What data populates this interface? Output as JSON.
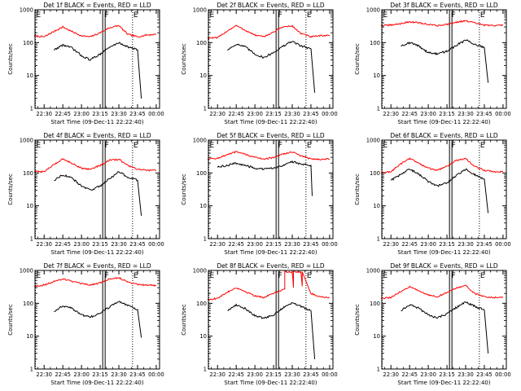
{
  "figure": {
    "background": "#ffffff",
    "colors": {
      "events": "#000000",
      "lld": "#ff0000",
      "axes": "#000000"
    },
    "ylabel": "Counts/sec",
    "xlabel": "Start Time (09-Dec-11 22:22:40)"
  },
  "chart_data": [
    {
      "type": "line",
      "title": "Det 1f BLACK = Events, RED = LLD",
      "ylabel": "Counts/sec",
      "xlabel": "Start Time (09-Dec-11 22:22:40)",
      "y_scale": "log",
      "ylim": [
        1,
        1000
      ],
      "yticks": [
        "1",
        "10",
        "100",
        "1000"
      ],
      "xlim": [
        "22:22:40",
        "00:02:40"
      ],
      "xticks": [
        "22:30",
        "22:45",
        "23:00",
        "23:15",
        "23:30",
        "23:45",
        "00:00"
      ],
      "flags": [
        {
          "label": "E",
          "time": "22:23"
        },
        {
          "label": "F",
          "time": "23:18"
        },
        {
          "label": "E",
          "time": "23:41"
        }
      ],
      "series": [
        {
          "name": "LLD",
          "color": "#ff0000",
          "x": [
            "22:22",
            "22:30",
            "22:38",
            "22:45",
            "22:52",
            "23:00",
            "23:07",
            "23:15",
            "23:22",
            "23:30",
            "23:37",
            "23:45",
            "23:52",
            "00:00"
          ],
          "y": [
            160,
            150,
            220,
            300,
            220,
            160,
            150,
            200,
            280,
            330,
            180,
            150,
            170,
            180
          ]
        },
        {
          "name": "Events",
          "color": "#000000",
          "x": [
            "22:38",
            "22:45",
            "22:52",
            "23:00",
            "23:07",
            "23:15",
            "23:22",
            "23:30",
            "23:37",
            "23:45",
            "23:48"
          ],
          "y": [
            60,
            85,
            70,
            40,
            30,
            45,
            70,
            100,
            75,
            60,
            2
          ]
        }
      ]
    },
    {
      "type": "line",
      "title": "Det 2f BLACK = Events, RED = LLD",
      "ylabel": "Counts/sec",
      "xlabel": "Start Time (09-Dec-11 22:22:40)",
      "y_scale": "log",
      "ylim": [
        1,
        1000
      ],
      "yticks": [
        "1",
        "10",
        "100",
        "1000"
      ],
      "xlim": [
        "22:22:40",
        "00:02:40"
      ],
      "xticks": [
        "22:30",
        "22:45",
        "23:00",
        "23:15",
        "23:30",
        "23:45",
        "00:00"
      ],
      "flags": [
        {
          "label": "E",
          "time": "22:23"
        },
        {
          "label": "F",
          "time": "23:18"
        },
        {
          "label": "E",
          "time": "23:41"
        }
      ],
      "series": [
        {
          "name": "LLD",
          "color": "#ff0000",
          "x": [
            "22:22",
            "22:30",
            "22:38",
            "22:45",
            "22:52",
            "23:00",
            "23:07",
            "23:15",
            "23:22",
            "23:30",
            "23:37",
            "23:45",
            "23:52",
            "00:00"
          ],
          "y": [
            140,
            140,
            230,
            330,
            240,
            170,
            150,
            210,
            300,
            320,
            190,
            150,
            160,
            170
          ]
        },
        {
          "name": "Events",
          "color": "#000000",
          "x": [
            "22:38",
            "22:45",
            "22:52",
            "23:00",
            "23:07",
            "23:15",
            "23:22",
            "23:30",
            "23:37",
            "23:45",
            "23:48"
          ],
          "y": [
            60,
            90,
            75,
            45,
            35,
            50,
            75,
            110,
            80,
            65,
            3
          ]
        }
      ]
    },
    {
      "type": "line",
      "title": "Det 3f BLACK = Events, RED = LLD",
      "ylabel": "Counts/sec",
      "xlabel": "Start Time (09-Dec-11 22:22:40)",
      "y_scale": "log",
      "ylim": [
        1,
        1000
      ],
      "yticks": [
        "1",
        "10",
        "100",
        "1000"
      ],
      "xlim": [
        "22:22:40",
        "00:02:40"
      ],
      "xticks": [
        "22:30",
        "22:45",
        "23:00",
        "23:15",
        "23:30",
        "23:45",
        "00:00"
      ],
      "flags": [
        {
          "label": "E",
          "time": "22:23"
        },
        {
          "label": "F",
          "time": "23:18"
        },
        {
          "label": "E",
          "time": "23:41"
        }
      ],
      "series": [
        {
          "name": "LLD",
          "color": "#ff0000",
          "x": [
            "22:22",
            "22:30",
            "22:38",
            "22:45",
            "22:52",
            "23:00",
            "23:07",
            "23:15",
            "23:22",
            "23:30",
            "23:37",
            "23:45",
            "23:52",
            "00:00"
          ],
          "y": [
            330,
            340,
            380,
            430,
            400,
            360,
            330,
            360,
            420,
            460,
            400,
            340,
            330,
            340
          ]
        },
        {
          "name": "Events",
          "color": "#000000",
          "x": [
            "22:38",
            "22:45",
            "22:52",
            "23:00",
            "23:07",
            "23:15",
            "23:22",
            "23:30",
            "23:37",
            "23:45",
            "23:48"
          ],
          "y": [
            80,
            100,
            80,
            50,
            45,
            55,
            80,
            120,
            90,
            70,
            6
          ]
        }
      ]
    },
    {
      "type": "line",
      "title": "Det 4f BLACK = Events, RED = LLD",
      "ylabel": "Counts/sec",
      "xlabel": "Start Time (09-Dec-11 22:22:40)",
      "y_scale": "log",
      "ylim": [
        1,
        1000
      ],
      "yticks": [
        "1",
        "10",
        "100",
        "1000"
      ],
      "xlim": [
        "22:22:40",
        "00:02:40"
      ],
      "xticks": [
        "22:30",
        "22:45",
        "23:00",
        "23:15",
        "23:30",
        "23:45",
        "00:00"
      ],
      "flags": [
        {
          "label": "E",
          "time": "22:23"
        },
        {
          "label": "F",
          "time": "23:18"
        },
        {
          "label": "E",
          "time": "23:41"
        }
      ],
      "series": [
        {
          "name": "LLD",
          "color": "#ff0000",
          "x": [
            "22:22",
            "22:30",
            "22:38",
            "22:45",
            "22:52",
            "23:00",
            "23:07",
            "23:15",
            "23:22",
            "23:30",
            "23:37",
            "23:45",
            "23:52",
            "00:00"
          ],
          "y": [
            110,
            110,
            180,
            270,
            200,
            140,
            130,
            170,
            240,
            260,
            170,
            130,
            120,
            120
          ]
        },
        {
          "name": "Events",
          "color": "#000000",
          "x": [
            "22:38",
            "22:45",
            "22:52",
            "23:00",
            "23:07",
            "23:15",
            "23:22",
            "23:30",
            "23:37",
            "23:45",
            "23:48"
          ],
          "y": [
            60,
            90,
            70,
            40,
            30,
            40,
            65,
            110,
            75,
            60,
            5
          ]
        }
      ]
    },
    {
      "type": "line",
      "title": "Det 5f BLACK = Events, RED = LLD",
      "ylabel": "Counts/sec",
      "xlabel": "Start Time (09-Dec-11 22:22:40)",
      "y_scale": "log",
      "ylim": [
        1,
        1000
      ],
      "yticks": [
        "1",
        "10",
        "100",
        "1000"
      ],
      "xlim": [
        "22:22:40",
        "00:02:40"
      ],
      "xticks": [
        "22:30",
        "22:45",
        "23:00",
        "23:15",
        "23:30",
        "23:45",
        "00:00"
      ],
      "flags": [
        {
          "label": "E",
          "time": "22:23"
        },
        {
          "label": "F",
          "time": "23:18"
        },
        {
          "label": "E",
          "time": "23:41"
        }
      ],
      "series": [
        {
          "name": "LLD",
          "color": "#ff0000",
          "x": [
            "22:22",
            "22:30",
            "22:38",
            "22:45",
            "22:52",
            "23:00",
            "23:07",
            "23:15",
            "23:22",
            "23:30",
            "23:37",
            "23:45",
            "23:52",
            "00:00"
          ],
          "y": [
            270,
            280,
            360,
            440,
            370,
            300,
            270,
            290,
            370,
            440,
            330,
            270,
            260,
            270
          ]
        },
        {
          "name": "Events",
          "color": "#000000",
          "x": [
            "22:30",
            "22:38",
            "22:45",
            "22:52",
            "23:00",
            "23:07",
            "23:15",
            "23:22",
            "23:30",
            "23:37",
            "23:45",
            "23:46"
          ],
          "y": [
            150,
            170,
            200,
            170,
            140,
            130,
            140,
            170,
            220,
            190,
            170,
            20
          ]
        }
      ]
    },
    {
      "type": "line",
      "title": "Det 6f BLACK = Events, RED = LLD",
      "ylabel": "Counts/sec",
      "xlabel": "Start Time (09-Dec-11 22:22:40)",
      "y_scale": "log",
      "ylim": [
        1,
        1000
      ],
      "yticks": [
        "1",
        "10",
        "100",
        "1000"
      ],
      "xlim": [
        "22:22:40",
        "00:02:40"
      ],
      "xticks": [
        "22:30",
        "22:45",
        "23:00",
        "23:15",
        "23:30",
        "23:45",
        "00:00"
      ],
      "flags": [
        {
          "label": "E",
          "time": "22:23"
        },
        {
          "label": "F",
          "time": "23:18"
        },
        {
          "label": "E",
          "time": "23:41"
        }
      ],
      "series": [
        {
          "name": "LLD",
          "color": "#ff0000",
          "x": [
            "22:22",
            "22:30",
            "22:38",
            "22:45",
            "22:52",
            "23:00",
            "23:07",
            "23:15",
            "23:22",
            "23:30",
            "23:37",
            "23:45",
            "23:52",
            "00:00"
          ],
          "y": [
            100,
            110,
            190,
            280,
            200,
            140,
            120,
            160,
            240,
            270,
            160,
            120,
            110,
            110
          ]
        },
        {
          "name": "Events",
          "color": "#000000",
          "x": [
            "22:30",
            "22:38",
            "22:45",
            "22:52",
            "23:00",
            "23:07",
            "23:15",
            "23:22",
            "23:30",
            "23:37",
            "23:45",
            "23:48"
          ],
          "y": [
            60,
            90,
            130,
            95,
            55,
            40,
            50,
            80,
            130,
            90,
            65,
            6
          ]
        }
      ]
    },
    {
      "type": "line",
      "title": "Det 7f BLACK = Events, RED = LLD",
      "ylabel": "Counts/sec",
      "xlabel": "Start Time (09-Dec-11 22:22:40)",
      "y_scale": "log",
      "ylim": [
        1,
        1000
      ],
      "yticks": [
        "1",
        "10",
        "100",
        "1000"
      ],
      "xlim": [
        "22:22:40",
        "00:02:40"
      ],
      "xticks": [
        "22:30",
        "22:45",
        "23:00",
        "23:15",
        "23:30",
        "23:45",
        "00:00"
      ],
      "flags": [
        {
          "label": "E",
          "time": "22:23"
        },
        {
          "label": "F",
          "time": "23:18"
        },
        {
          "label": "E",
          "time": "23:41"
        }
      ],
      "series": [
        {
          "name": "LLD",
          "color": "#ff0000",
          "x": [
            "22:22",
            "22:30",
            "22:38",
            "22:45",
            "22:52",
            "23:00",
            "23:07",
            "23:15",
            "23:22",
            "23:30",
            "23:37",
            "23:45",
            "23:52",
            "00:00"
          ],
          "y": [
            330,
            360,
            460,
            560,
            470,
            390,
            360,
            420,
            540,
            600,
            450,
            380,
            360,
            350
          ]
        },
        {
          "name": "Events",
          "color": "#000000",
          "x": [
            "22:38",
            "22:45",
            "22:52",
            "23:00",
            "23:07",
            "23:15",
            "23:22",
            "23:30",
            "23:37",
            "23:45",
            "23:48"
          ],
          "y": [
            55,
            85,
            70,
            45,
            38,
            50,
            75,
            115,
            85,
            65,
            9
          ]
        }
      ]
    },
    {
      "type": "line",
      "title": "Det 8f BLACK = Events, RED = LLD",
      "ylabel": "Counts/sec",
      "xlabel": "Start Time (09-Dec-11 22:22:40)",
      "y_scale": "log",
      "ylim": [
        1,
        1000
      ],
      "yticks": [
        "1",
        "10",
        "100",
        "1000"
      ],
      "xlim": [
        "22:22:40",
        "00:02:40"
      ],
      "xticks": [
        "22:30",
        "22:45",
        "23:00",
        "23:15",
        "23:30",
        "23:45",
        "00:00"
      ],
      "flags": [
        {
          "label": "E",
          "time": "22:23"
        },
        {
          "label": "F",
          "time": "23:18"
        },
        {
          "label": "E",
          "time": "23:41"
        }
      ],
      "series": [
        {
          "name": "LLD",
          "color": "#ff0000",
          "x": [
            "22:22",
            "22:30",
            "22:38",
            "22:45",
            "22:52",
            "23:00",
            "23:07",
            "23:15",
            "23:22",
            "23:24",
            "23:24",
            "23:30",
            "23:31",
            "23:31",
            "23:37",
            "23:38",
            "23:38",
            "23:45",
            "23:52",
            "00:00"
          ],
          "y": [
            130,
            140,
            220,
            300,
            230,
            170,
            150,
            200,
            260,
            270,
            900,
            900,
            300,
            900,
            900,
            330,
            900,
            200,
            160,
            150
          ]
        },
        {
          "name": "Events",
          "color": "#000000",
          "x": [
            "22:38",
            "22:45",
            "22:52",
            "23:00",
            "23:07",
            "23:15",
            "23:22",
            "23:30",
            "23:37",
            "23:45",
            "23:48"
          ],
          "y": [
            60,
            90,
            70,
            42,
            35,
            45,
            70,
            105,
            80,
            60,
            2
          ]
        }
      ]
    },
    {
      "type": "line",
      "title": "Det 9f BLACK = Events, RED = LLD",
      "ylabel": "Counts/sec",
      "xlabel": "Start Time (09-Dec-11 22:22:40)",
      "y_scale": "log",
      "ylim": [
        1,
        1000
      ],
      "yticks": [
        "1",
        "10",
        "100",
        "1000"
      ],
      "xlim": [
        "22:22:40",
        "00:02:40"
      ],
      "xticks": [
        "22:30",
        "22:45",
        "23:00",
        "23:15",
        "23:30",
        "23:45",
        "00:00"
      ],
      "flags": [
        {
          "label": "E",
          "time": "22:23"
        },
        {
          "label": "F",
          "time": "23:18"
        },
        {
          "label": "E",
          "time": "23:41"
        }
      ],
      "series": [
        {
          "name": "LLD",
          "color": "#ff0000",
          "x": [
            "22:22",
            "22:30",
            "22:38",
            "22:45",
            "22:52",
            "23:00",
            "23:07",
            "23:15",
            "23:22",
            "23:30",
            "23:37",
            "23:45",
            "23:52",
            "00:00"
          ],
          "y": [
            140,
            150,
            230,
            320,
            240,
            180,
            160,
            210,
            290,
            340,
            200,
            160,
            150,
            150
          ]
        },
        {
          "name": "Events",
          "color": "#000000",
          "x": [
            "22:38",
            "22:45",
            "22:52",
            "23:00",
            "23:07",
            "23:15",
            "23:22",
            "23:30",
            "23:37",
            "23:45",
            "23:48"
          ],
          "y": [
            60,
            90,
            72,
            44,
            36,
            48,
            72,
            110,
            82,
            62,
            3
          ]
        }
      ]
    }
  ]
}
